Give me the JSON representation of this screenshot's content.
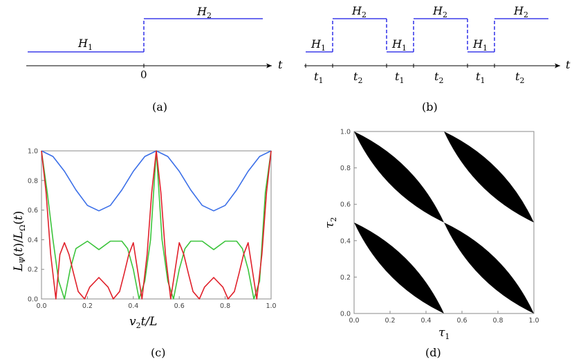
{
  "panel_a": {
    "h1": "H",
    "h1_sub": "1",
    "h2": "H",
    "h2_sub": "2",
    "zero": "0",
    "axis": "t",
    "caption": "(a)"
  },
  "panel_b": {
    "h1": "H",
    "h1_sub": "1",
    "h2": "H",
    "h2_sub": "2",
    "t1": "t",
    "t1_sub": "1",
    "t2": "t",
    "t2_sub": "2",
    "axis": "t",
    "caption": "(b)"
  },
  "panel_c": {
    "caption": "(c)",
    "chart_data": {
      "type": "line",
      "title": "",
      "xlabel": "v2t/L",
      "ylabel": "LΨ(t)/LΩ(t)",
      "xlim": [
        0,
        1
      ],
      "ylim": [
        0,
        1
      ],
      "xticks": [
        "0.0",
        "0.2",
        "0.4",
        "0.6",
        "0.8",
        "1.0"
      ],
      "yticks": [
        "0.0",
        "0.2",
        "0.4",
        "0.6",
        "0.8",
        "1.0"
      ],
      "series": [
        {
          "name": "blue",
          "color": "#3b6fe8",
          "x": [
            0.0,
            0.05,
            0.1,
            0.15,
            0.2,
            0.25,
            0.3,
            0.35,
            0.4,
            0.45,
            0.5,
            0.55,
            0.6,
            0.65,
            0.7,
            0.75,
            0.8,
            0.85,
            0.9,
            0.95,
            1.0
          ],
          "y": [
            1.0,
            0.962,
            0.862,
            0.736,
            0.632,
            0.595,
            0.632,
            0.736,
            0.862,
            0.962,
            1.0,
            0.962,
            0.862,
            0.736,
            0.632,
            0.595,
            0.632,
            0.736,
            0.862,
            0.962,
            1.0
          ]
        },
        {
          "name": "green",
          "color": "#3cc43c",
          "x": [
            0.0,
            0.025,
            0.05,
            0.075,
            0.1,
            0.125,
            0.15,
            0.2,
            0.25,
            0.3,
            0.35,
            0.375,
            0.4,
            0.425,
            0.45,
            0.475,
            0.5,
            0.525,
            0.55,
            0.575,
            0.6,
            0.625,
            0.65,
            0.7,
            0.75,
            0.8,
            0.85,
            0.875,
            0.9,
            0.925,
            0.95,
            0.975,
            1.0
          ],
          "y": [
            1.0,
            0.72,
            0.4,
            0.12,
            0.0,
            0.2,
            0.34,
            0.39,
            0.333,
            0.39,
            0.39,
            0.34,
            0.2,
            0.0,
            0.12,
            0.4,
            1.0,
            0.4,
            0.12,
            0.0,
            0.2,
            0.34,
            0.39,
            0.39,
            0.333,
            0.39,
            0.39,
            0.34,
            0.2,
            0.0,
            0.12,
            0.72,
            1.0
          ]
        },
        {
          "name": "red",
          "color": "#e0202a",
          "x": [
            0.0,
            0.02,
            0.04,
            0.0625,
            0.08,
            0.1,
            0.12,
            0.14,
            0.16,
            0.1875,
            0.21,
            0.25,
            0.29,
            0.3125,
            0.34,
            0.36,
            0.38,
            0.4,
            0.4375,
            0.46,
            0.48,
            0.5,
            0.52,
            0.54,
            0.5625,
            0.6,
            0.62,
            0.64,
            0.66,
            0.6875,
            0.71,
            0.75,
            0.79,
            0.8125,
            0.84,
            0.86,
            0.88,
            0.9,
            0.9375,
            0.96,
            0.98,
            1.0
          ],
          "y": [
            1.0,
            0.72,
            0.3,
            0.0,
            0.3,
            0.38,
            0.3,
            0.17,
            0.05,
            0.0,
            0.08,
            0.145,
            0.08,
            0.0,
            0.05,
            0.17,
            0.3,
            0.38,
            0.0,
            0.3,
            0.72,
            1.0,
            0.72,
            0.3,
            0.0,
            0.38,
            0.3,
            0.17,
            0.05,
            0.0,
            0.08,
            0.145,
            0.08,
            0.0,
            0.05,
            0.17,
            0.3,
            0.38,
            0.0,
            0.3,
            0.72,
            1.0
          ]
        }
      ]
    }
  },
  "panel_d": {
    "caption": "(d)",
    "chart_data": {
      "type": "region",
      "title": "",
      "xlabel": "τ1",
      "ylabel": "τ2",
      "xlim": [
        0,
        1
      ],
      "ylim": [
        0,
        1
      ],
      "xticks": [
        "0.0",
        "0.2",
        "0.4",
        "0.6",
        "0.8",
        "1.0"
      ],
      "yticks": [
        "0.0",
        "0.2",
        "0.4",
        "0.6",
        "0.8",
        "1.0"
      ],
      "fill": "#000000",
      "lobes": [
        {
          "from": [
            0.0,
            1.0
          ],
          "to": [
            0.5,
            0.5
          ]
        },
        {
          "from": [
            0.5,
            0.5
          ],
          "to": [
            1.0,
            0.0
          ]
        },
        {
          "from": [
            0.0,
            0.5
          ],
          "to": [
            0.5,
            0.0
          ]
        },
        {
          "from": [
            0.5,
            1.0
          ],
          "to": [
            1.0,
            0.5
          ]
        }
      ],
      "lobe_bulge": 0.09
    }
  }
}
